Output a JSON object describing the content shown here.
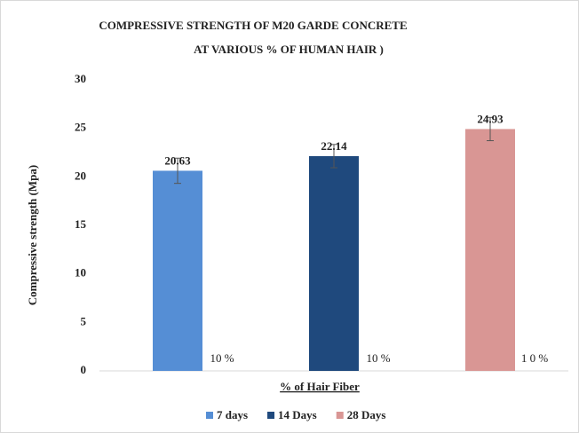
{
  "chart_data": {
    "type": "bar",
    "title": [
      "COMPRESSIVE STRENGTH OF M20 GARDE CONCRETE",
      "AT VARIOUS % OF HUMAN HAIR )"
    ],
    "categories": [
      "10 %",
      "10 %",
      "1 0 %"
    ],
    "series": [
      {
        "name": "7 days",
        "color": "#558ed5",
        "values": [
          20.63,
          null,
          null
        ],
        "errors": [
          1.3,
          null,
          null
        ]
      },
      {
        "name": "14 Days",
        "color": "#1f497d",
        "values": [
          null,
          22.14,
          null
        ],
        "errors": [
          null,
          1.2,
          null
        ]
      },
      {
        "name": "28 Days",
        "color": "#d99694",
        "values": [
          null,
          null,
          24.93
        ],
        "errors": [
          null,
          null,
          1.2
        ]
      }
    ],
    "ylabel": "Compressive strength (Mpa)",
    "xlabel": "% of Hair Fiber",
    "ylim": [
      0,
      30
    ],
    "yticks": [
      0,
      5,
      10,
      15,
      20,
      25,
      30
    ],
    "grid": false,
    "legend": "bottom"
  }
}
